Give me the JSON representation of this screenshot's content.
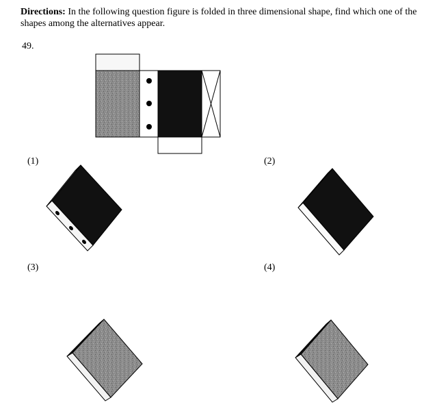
{
  "directions": {
    "lead": "Directions:",
    "text": " In the following question figure is folded in three dimensional shape, find which one of the shapes among the alternatives appear."
  },
  "question": {
    "number": "49."
  },
  "options": [
    {
      "label": "(1)"
    },
    {
      "label": "(2)"
    },
    {
      "label": "(3)"
    },
    {
      "label": "(4)"
    }
  ],
  "colors": {
    "black": "#111111",
    "gray": "#8a8a8a",
    "light": "#f4f4f4"
  }
}
